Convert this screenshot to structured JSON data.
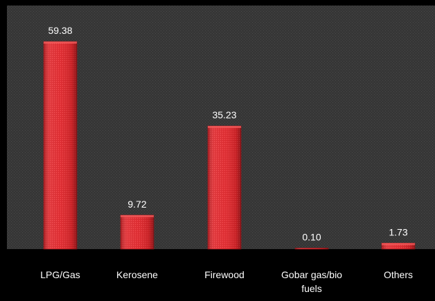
{
  "colors": {
    "background": "#000000",
    "plot_area": "#3a3a3a",
    "bar_main": "#e0262b",
    "bar_light": "#ef5a5a",
    "bar_dark": "#a51519",
    "text": "#ffffff"
  },
  "chart_data": {
    "type": "bar",
    "title": "",
    "xlabel": "",
    "ylabel": "",
    "categories": [
      "LPG/Gas",
      "Kerosene",
      "Firewood",
      "Gobar gas/bio fuels",
      "Others"
    ],
    "category_lines": [
      [
        "LPG/Gas"
      ],
      [
        "Kerosene"
      ],
      [
        "Firewood"
      ],
      [
        "Gobar gas/bio",
        "fuels"
      ],
      [
        "Others"
      ]
    ],
    "values": [
      59.38,
      9.72,
      35.23,
      0.1,
      1.73
    ],
    "value_labels": [
      "59.38",
      "9.72",
      "35.23",
      "0.10",
      "1.73"
    ],
    "ylim": [
      0,
      65
    ],
    "grid": false,
    "legend": "none"
  }
}
